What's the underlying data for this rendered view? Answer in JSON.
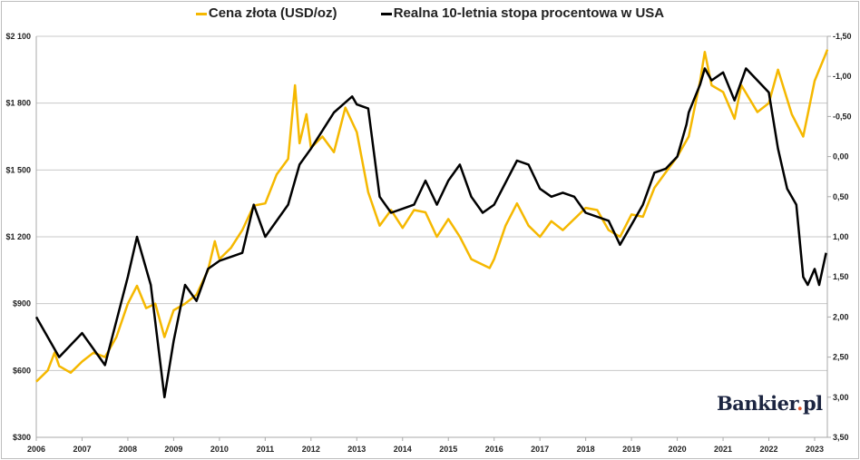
{
  "chart_data": {
    "type": "line",
    "title": "",
    "legend_position": "top",
    "legend": [
      "Cena złota (USD/oz)",
      "Realna 10-letnia stopa procentowa w USA"
    ],
    "x_ticks": [
      "2006",
      "2007",
      "2008",
      "2009",
      "2010",
      "2011",
      "2012",
      "2013",
      "2014",
      "2015",
      "2016",
      "2017",
      "2018",
      "2019",
      "2020",
      "2021",
      "2022",
      "2023"
    ],
    "xlim": [
      2006,
      2023.3
    ],
    "y_left": {
      "ticks": [
        "$300",
        "$600",
        "$900",
        "$1 200",
        "$1 500",
        "$1 800",
        "$2 100"
      ],
      "lim": [
        300,
        2100
      ]
    },
    "y_right": {
      "ticks": [
        "-1,50",
        "-1,00",
        "-0,50",
        "0,00",
        "0,50",
        "1,00",
        "1,50",
        "2,00",
        "2,50",
        "3,00",
        "3,50"
      ],
      "lim": [
        -1.5,
        3.5
      ],
      "inverted": true
    },
    "grid": true,
    "series": [
      {
        "name": "Cena złota (USD/oz)",
        "axis": "left",
        "color": "#f5b800",
        "points": [
          [
            2006.0,
            550
          ],
          [
            2006.25,
            600
          ],
          [
            2006.4,
            680
          ],
          [
            2006.5,
            620
          ],
          [
            2006.75,
            590
          ],
          [
            2007.0,
            640
          ],
          [
            2007.25,
            680
          ],
          [
            2007.5,
            660
          ],
          [
            2007.75,
            750
          ],
          [
            2008.0,
            900
          ],
          [
            2008.2,
            980
          ],
          [
            2008.4,
            880
          ],
          [
            2008.6,
            900
          ],
          [
            2008.8,
            750
          ],
          [
            2009.0,
            870
          ],
          [
            2009.25,
            900
          ],
          [
            2009.5,
            940
          ],
          [
            2009.75,
            1050
          ],
          [
            2009.9,
            1180
          ],
          [
            2010.0,
            1100
          ],
          [
            2010.25,
            1150
          ],
          [
            2010.5,
            1230
          ],
          [
            2010.75,
            1340
          ],
          [
            2011.0,
            1350
          ],
          [
            2011.25,
            1480
          ],
          [
            2011.5,
            1550
          ],
          [
            2011.65,
            1880
          ],
          [
            2011.75,
            1620
          ],
          [
            2011.9,
            1750
          ],
          [
            2012.0,
            1600
          ],
          [
            2012.25,
            1650
          ],
          [
            2012.5,
            1580
          ],
          [
            2012.75,
            1780
          ],
          [
            2013.0,
            1670
          ],
          [
            2013.25,
            1400
          ],
          [
            2013.5,
            1250
          ],
          [
            2013.75,
            1320
          ],
          [
            2014.0,
            1240
          ],
          [
            2014.25,
            1320
          ],
          [
            2014.5,
            1310
          ],
          [
            2014.75,
            1200
          ],
          [
            2015.0,
            1280
          ],
          [
            2015.25,
            1200
          ],
          [
            2015.5,
            1100
          ],
          [
            2015.9,
            1060
          ],
          [
            2016.0,
            1100
          ],
          [
            2016.25,
            1250
          ],
          [
            2016.5,
            1350
          ],
          [
            2016.75,
            1250
          ],
          [
            2017.0,
            1200
          ],
          [
            2017.25,
            1270
          ],
          [
            2017.5,
            1230
          ],
          [
            2017.75,
            1280
          ],
          [
            2018.0,
            1330
          ],
          [
            2018.25,
            1320
          ],
          [
            2018.5,
            1230
          ],
          [
            2018.75,
            1200
          ],
          [
            2019.0,
            1300
          ],
          [
            2019.25,
            1290
          ],
          [
            2019.5,
            1420
          ],
          [
            2019.75,
            1490
          ],
          [
            2020.0,
            1560
          ],
          [
            2020.25,
            1650
          ],
          [
            2020.5,
            1900
          ],
          [
            2020.6,
            2030
          ],
          [
            2020.75,
            1880
          ],
          [
            2021.0,
            1850
          ],
          [
            2021.25,
            1730
          ],
          [
            2021.4,
            1880
          ],
          [
            2021.75,
            1760
          ],
          [
            2022.0,
            1800
          ],
          [
            2022.2,
            1950
          ],
          [
            2022.5,
            1750
          ],
          [
            2022.75,
            1650
          ],
          [
            2023.0,
            1900
          ],
          [
            2023.2,
            2000
          ],
          [
            2023.28,
            2040
          ]
        ]
      },
      {
        "name": "Realna 10-letnia stopa procentowa w USA",
        "axis": "right",
        "color": "#000000",
        "points": [
          [
            2006.0,
            2.0
          ],
          [
            2006.5,
            2.5
          ],
          [
            2007.0,
            2.2
          ],
          [
            2007.5,
            2.6
          ],
          [
            2008.0,
            1.5
          ],
          [
            2008.2,
            1.0
          ],
          [
            2008.5,
            1.6
          ],
          [
            2008.8,
            3.0
          ],
          [
            2009.0,
            2.3
          ],
          [
            2009.25,
            1.6
          ],
          [
            2009.5,
            1.8
          ],
          [
            2009.75,
            1.4
          ],
          [
            2010.0,
            1.3
          ],
          [
            2010.5,
            1.2
          ],
          [
            2010.75,
            0.6
          ],
          [
            2011.0,
            1.0
          ],
          [
            2011.5,
            0.6
          ],
          [
            2011.75,
            0.1
          ],
          [
            2012.0,
            -0.1
          ],
          [
            2012.5,
            -0.55
          ],
          [
            2012.9,
            -0.75
          ],
          [
            2013.0,
            -0.65
          ],
          [
            2013.25,
            -0.6
          ],
          [
            2013.5,
            0.5
          ],
          [
            2013.75,
            0.7
          ],
          [
            2014.0,
            0.65
          ],
          [
            2014.25,
            0.6
          ],
          [
            2014.5,
            0.3
          ],
          [
            2014.75,
            0.6
          ],
          [
            2015.0,
            0.3
          ],
          [
            2015.25,
            0.1
          ],
          [
            2015.5,
            0.5
          ],
          [
            2015.75,
            0.7
          ],
          [
            2016.0,
            0.6
          ],
          [
            2016.5,
            0.05
          ],
          [
            2016.75,
            0.1
          ],
          [
            2017.0,
            0.4
          ],
          [
            2017.25,
            0.5
          ],
          [
            2017.5,
            0.45
          ],
          [
            2017.75,
            0.5
          ],
          [
            2018.0,
            0.7
          ],
          [
            2018.5,
            0.8
          ],
          [
            2018.75,
            1.1
          ],
          [
            2019.0,
            0.85
          ],
          [
            2019.25,
            0.6
          ],
          [
            2019.5,
            0.2
          ],
          [
            2019.75,
            0.15
          ],
          [
            2020.0,
            0.0
          ],
          [
            2020.2,
            -0.4
          ],
          [
            2020.25,
            -0.55
          ],
          [
            2020.5,
            -0.9
          ],
          [
            2020.6,
            -1.1
          ],
          [
            2020.75,
            -0.95
          ],
          [
            2021.0,
            -1.05
          ],
          [
            2021.25,
            -0.7
          ],
          [
            2021.5,
            -1.1
          ],
          [
            2021.75,
            -0.95
          ],
          [
            2022.0,
            -0.8
          ],
          [
            2022.2,
            -0.1
          ],
          [
            2022.4,
            0.4
          ],
          [
            2022.6,
            0.6
          ],
          [
            2022.75,
            1.5
          ],
          [
            2022.85,
            1.6
          ],
          [
            2023.0,
            1.4
          ],
          [
            2023.1,
            1.6
          ],
          [
            2023.25,
            1.2
          ]
        ]
      }
    ]
  },
  "logo": {
    "main": "Bankier",
    "dot": ".",
    "suffix": "pl"
  }
}
